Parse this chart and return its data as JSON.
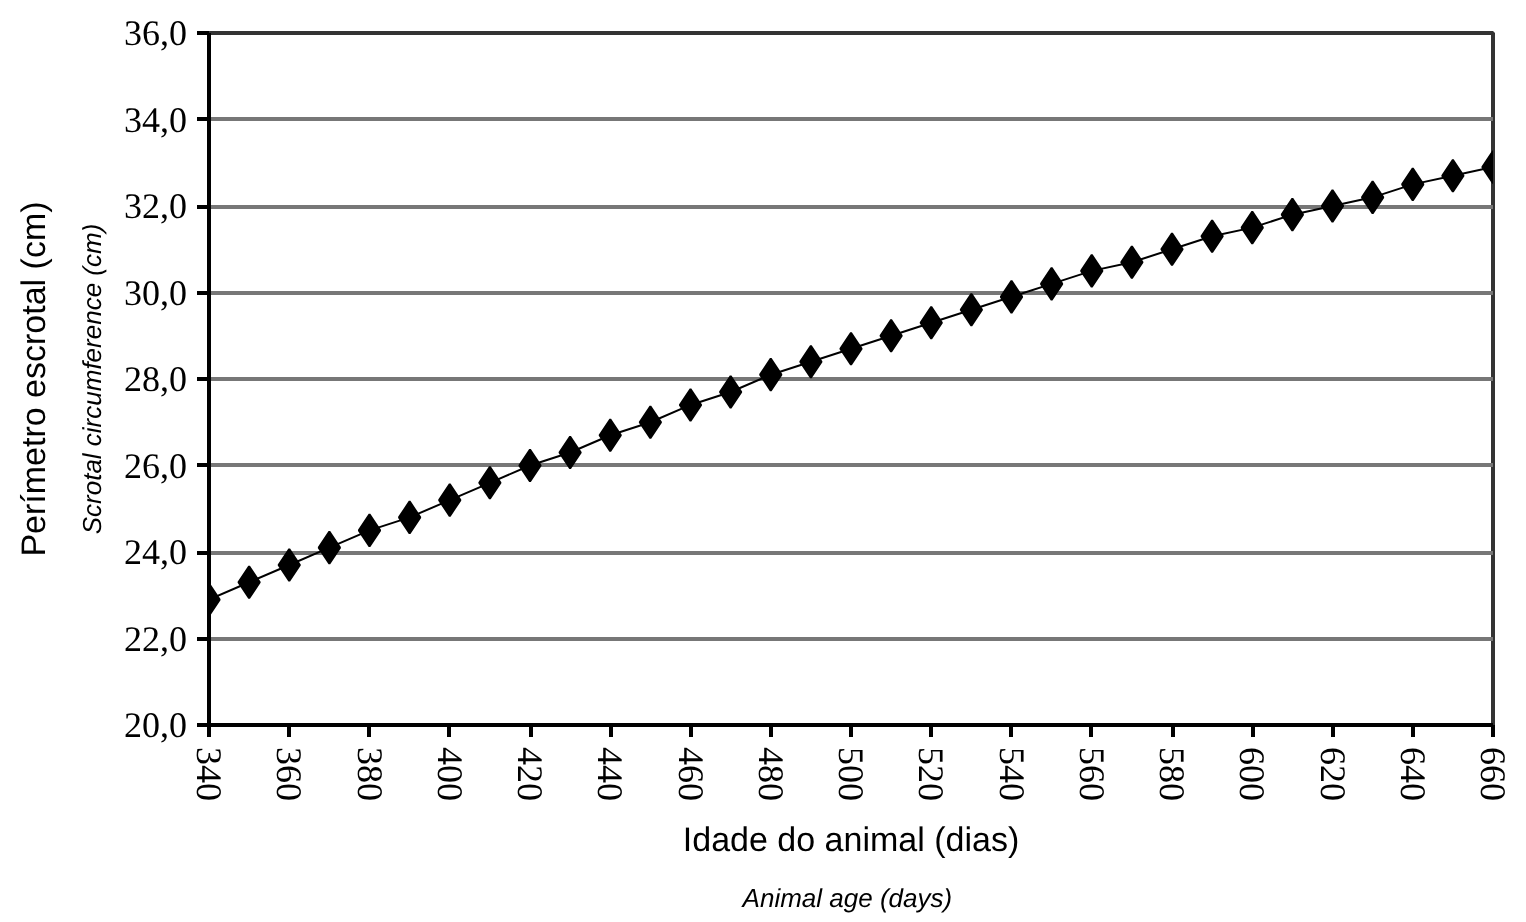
{
  "chart_data": {
    "type": "line",
    "xlabel": "Idade do animal (dias)",
    "ylabel": "Perímetro escrotal (cm)",
    "annotations": [
      "Animal  age (days)",
      "Scrotal circumference (cm)"
    ],
    "x": [
      340,
      350,
      360,
      370,
      380,
      390,
      400,
      410,
      420,
      430,
      440,
      450,
      460,
      470,
      480,
      490,
      500,
      510,
      520,
      530,
      540,
      550,
      560,
      570,
      580,
      590,
      600,
      610,
      620,
      630,
      640,
      650,
      660
    ],
    "series": [
      {
        "color": "#000000",
        "values": [
          22.9,
          23.3,
          23.7,
          24.1,
          24.5,
          24.8,
          25.2,
          25.6,
          26.0,
          26.3,
          26.7,
          27.0,
          27.4,
          27.7,
          28.1,
          28.4,
          28.7,
          29.0,
          29.3,
          29.6,
          29.9,
          30.2,
          30.5,
          30.7,
          31.0,
          31.3,
          31.5,
          31.8,
          32.0,
          32.2,
          32.5,
          32.7,
          32.9
        ]
      }
    ],
    "xlim": [
      340,
      660
    ],
    "ylim": [
      20,
      36
    ],
    "xticks": [
      340,
      360,
      380,
      400,
      420,
      440,
      460,
      480,
      500,
      520,
      540,
      560,
      580,
      600,
      620,
      640,
      660
    ],
    "yticks": [
      {
        "value": 20,
        "label": "20,0"
      },
      {
        "value": 22,
        "label": "22,0"
      },
      {
        "value": 24,
        "label": "24,0"
      },
      {
        "value": 26,
        "label": "26,0"
      },
      {
        "value": 28,
        "label": "28,0"
      },
      {
        "value": 30,
        "label": "30,0"
      },
      {
        "value": 32,
        "label": "32,0"
      },
      {
        "value": 34,
        "label": "34,0"
      },
      {
        "value": 36,
        "label": "36,0"
      }
    ],
    "grid": "y",
    "marker": "diamond",
    "line_style": "solid"
  }
}
